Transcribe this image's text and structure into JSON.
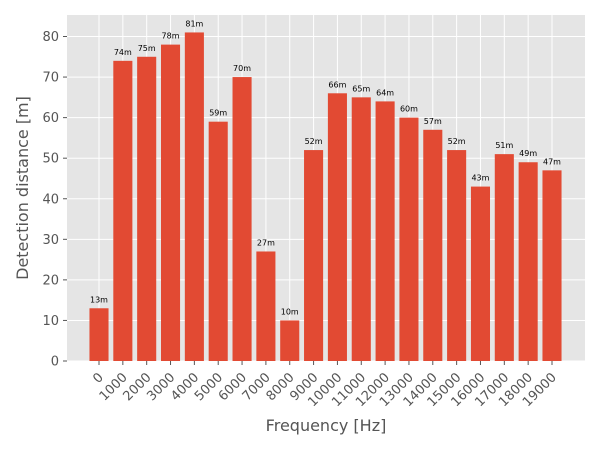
{
  "chart_data": {
    "type": "bar",
    "categories": [
      "0",
      "1000",
      "2000",
      "3000",
      "4000",
      "5000",
      "6000",
      "7000",
      "8000",
      "9000",
      "10000",
      "11000",
      "12000",
      "13000",
      "14000",
      "15000",
      "16000",
      "17000",
      "18000",
      "19000"
    ],
    "values": [
      13,
      74,
      75,
      78,
      81,
      59,
      70,
      27,
      10,
      52,
      66,
      65,
      64,
      60,
      57,
      52,
      43,
      51,
      49,
      47
    ],
    "data_labels": [
      "13m",
      "74m",
      "75m",
      "78m",
      "81m",
      "59m",
      "70m",
      "27m",
      "10m",
      "52m",
      "66m",
      "65m",
      "64m",
      "60m",
      "57m",
      "52m",
      "43m",
      "51m",
      "49m",
      "47m"
    ],
    "title": "",
    "xlabel": "Frequency [Hz]",
    "ylabel": "Detection distance [m]",
    "ylim": [
      0,
      85
    ],
    "yticks": [
      0,
      10,
      20,
      30,
      40,
      50,
      60,
      70,
      80
    ],
    "grid": true,
    "colors": {
      "bar": "#E24A33",
      "plot_background": "#E5E5E5",
      "grid": "#FFFFFF",
      "text": "#555555"
    }
  }
}
